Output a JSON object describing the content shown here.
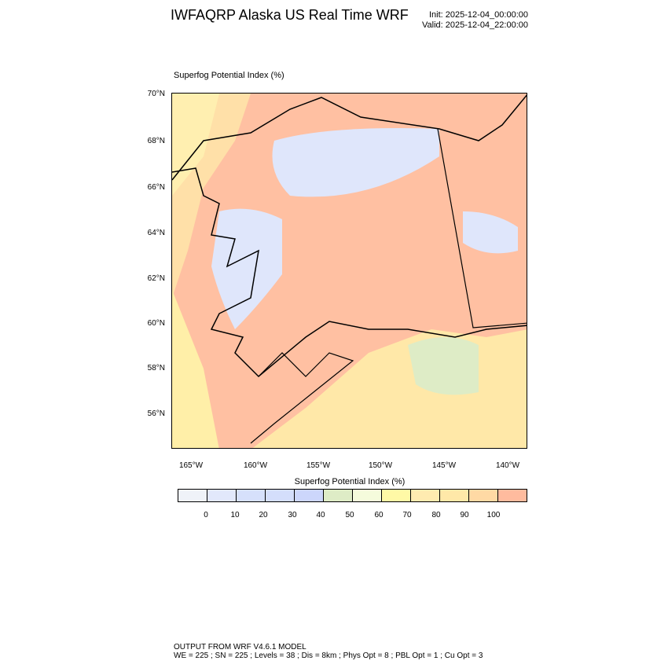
{
  "header": {
    "title": "IWFAQRP Alaska US Real Time WRF",
    "init": "Init: 2025-12-04_00:00:00",
    "valid": "Valid: 2025-12-04_22:00:00"
  },
  "map": {
    "title": "Superfog Potential Index   (%)",
    "lat_labels": [
      "70°N",
      "68°N",
      "66°N",
      "64°N",
      "62°N",
      "60°N",
      "58°N",
      "56°N"
    ],
    "lon_labels": [
      "165°W",
      "160°W",
      "155°W",
      "150°W",
      "145°W",
      "140°W"
    ]
  },
  "colorbar": {
    "title": "Superfog Potential Index  (%)",
    "colors": [
      "#eff2f8",
      "#e2e8fb",
      "#d6e0fb",
      "#d4defb",
      "#ccd6fb",
      "#deecc6",
      "#f5fbdc",
      "#fff9a6",
      "#ffebb0",
      "#ffe8a8",
      "#ffd9a4",
      "#ffbb9e"
    ],
    "labels": [
      "0",
      "10",
      "20",
      "30",
      "40",
      "50",
      "60",
      "70",
      "80",
      "90",
      "100"
    ]
  },
  "footer": {
    "line1": "OUTPUT FROM WRF V4.6.1 MODEL",
    "line2": "WE = 225 ; SN = 225 ; Levels = 38 ; Dis = 8km ; Phys Opt = 8 ; PBL Opt = 1 ; Cu Opt = 3"
  }
}
